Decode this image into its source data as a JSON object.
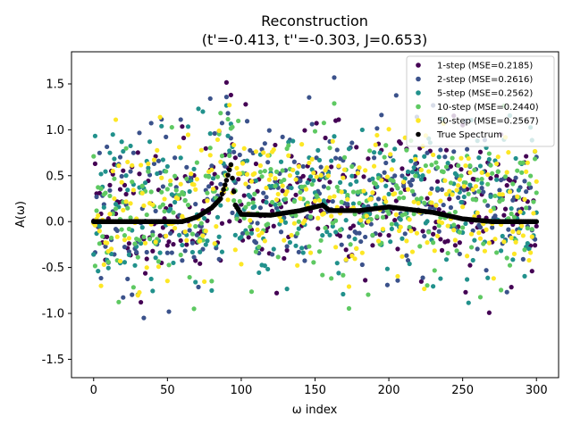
{
  "chart_data": {
    "type": "scatter",
    "title": "Reconstruction",
    "subtitle": "(t'=-0.413, t''=-0.303, J=0.653)",
    "xlabel": "ω index",
    "ylabel": "A(ω)",
    "xlim": [
      -15,
      315
    ],
    "ylim": [
      -1.7,
      1.85
    ],
    "xticks": [
      0,
      50,
      100,
      150,
      200,
      250,
      300
    ],
    "yticks": [
      -1.5,
      -1.0,
      -0.5,
      0.0,
      0.5,
      1.0,
      1.5
    ],
    "grid": false,
    "legend_position": "top-right",
    "n_points": 301,
    "series": [
      {
        "name": "1-step (MSE=0.2185)",
        "color": "#440154",
        "seed": 11,
        "amp": 0.55
      },
      {
        "name": "2-step (MSE=0.2616)",
        "color": "#3b528b",
        "seed": 23,
        "amp": 0.6
      },
      {
        "name": "5-step (MSE=0.2562)",
        "color": "#21918c",
        "seed": 37,
        "amp": 0.6
      },
      {
        "name": "10-step (MSE=0.2440)",
        "color": "#5ec962",
        "seed": 53,
        "amp": 0.58
      },
      {
        "name": "50-step (MSE=0.2567)",
        "color": "#fde725",
        "seed": 71,
        "amp": 0.6
      },
      {
        "name": "True Spectrum",
        "color": "#000000"
      }
    ],
    "true_spectrum_profile": {
      "x": [
        0,
        60,
        70,
        80,
        86,
        90,
        93,
        96,
        100,
        120,
        140,
        150,
        155,
        160,
        180,
        200,
        210,
        230,
        250,
        270,
        300
      ],
      "y": [
        0.0,
        0.0,
        0.05,
        0.15,
        0.25,
        0.45,
        0.62,
        0.18,
        0.08,
        0.07,
        0.12,
        0.16,
        0.18,
        0.12,
        0.12,
        0.16,
        0.14,
        0.1,
        0.03,
        0.0,
        0.0
      ]
    }
  }
}
